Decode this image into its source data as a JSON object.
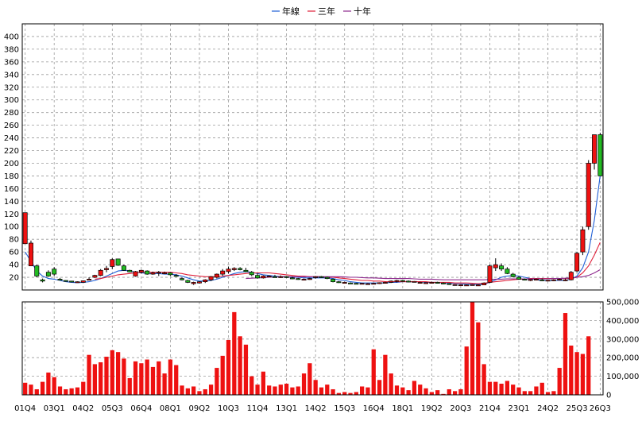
{
  "chart_data": {
    "type": "candlestick_with_volume",
    "legend": [
      {
        "name": "年線",
        "color": "#1f5fd6"
      },
      {
        "name": "三年",
        "color": "#e0203a"
      },
      {
        "name": "十年",
        "color": "#8e2a8e"
      }
    ],
    "price_axis": {
      "min": 0,
      "max": 400,
      "ticks": [
        20,
        40,
        60,
        80,
        100,
        120,
        140,
        160,
        180,
        200,
        220,
        240,
        260,
        280,
        300,
        320,
        340,
        360,
        380,
        400
      ]
    },
    "volume_axis": {
      "min": 0,
      "max": 500000,
      "ticks": [
        "0",
        "100,000",
        "200,000",
        "300,000",
        "400,000",
        "500,000"
      ],
      "tick_values": [
        0,
        100000,
        200000,
        300000,
        400000,
        500000
      ]
    },
    "x_labels": [
      "01Q4",
      "03Q1",
      "04Q2",
      "05Q3",
      "06Q4",
      "08Q1",
      "09Q2",
      "10Q3",
      "11Q4",
      "13Q1",
      "14Q2",
      "15Q3",
      "16Q4",
      "18Q1",
      "19Q2",
      "20Q3",
      "21Q4",
      "23Q1",
      "24Q2",
      "25Q3",
      "26Q3"
    ],
    "x_label_index": [
      0,
      5,
      10,
      15,
      20,
      25,
      30,
      35,
      40,
      45,
      50,
      55,
      60,
      65,
      70,
      75,
      80,
      85,
      90,
      95,
      99
    ],
    "ohlc": [
      [
        73,
        122,
        73,
        122
      ],
      [
        38,
        78,
        38,
        74
      ],
      [
        38,
        40,
        20,
        22
      ],
      [
        16,
        18,
        12,
        14
      ],
      [
        28,
        31,
        21,
        22
      ],
      [
        33,
        36,
        22,
        25
      ],
      [
        17,
        19,
        15,
        16
      ],
      [
        15,
        15.5,
        14,
        14.5
      ],
      [
        14,
        14.5,
        12,
        12.5
      ],
      [
        12.5,
        13.5,
        12,
        13
      ],
      [
        12,
        15,
        12,
        14.5
      ],
      [
        16,
        20,
        15,
        17
      ],
      [
        20,
        24,
        19,
        23
      ],
      [
        23,
        33,
        22,
        31
      ],
      [
        32,
        38,
        28,
        34
      ],
      [
        37,
        50,
        33,
        48
      ],
      [
        49,
        49,
        38,
        39
      ],
      [
        38,
        40,
        30,
        31
      ],
      [
        31,
        32,
        28,
        28.5
      ],
      [
        22,
        30,
        21,
        29
      ],
      [
        28,
        32,
        26,
        31
      ],
      [
        30,
        31,
        24,
        25
      ],
      [
        25,
        29,
        24,
        27
      ],
      [
        27,
        30,
        22,
        28
      ],
      [
        26,
        29,
        25,
        27
      ],
      [
        27,
        28,
        22,
        24
      ],
      [
        23,
        25,
        21,
        22
      ],
      [
        18,
        20,
        15,
        16
      ],
      [
        15,
        16,
        11,
        12
      ],
      [
        10,
        13,
        8,
        12
      ],
      [
        11,
        14,
        10,
        13
      ],
      [
        13,
        17,
        11,
        16
      ],
      [
        16,
        22,
        14,
        21
      ],
      [
        20,
        26,
        18,
        25
      ],
      [
        25,
        33,
        22,
        30
      ],
      [
        29,
        37,
        26,
        33
      ],
      [
        32,
        36,
        30,
        34
      ],
      [
        34,
        36,
        31,
        32
      ],
      [
        31,
        35,
        28,
        29
      ],
      [
        28,
        30,
        22,
        24
      ],
      [
        23,
        26,
        18,
        19
      ],
      [
        19,
        23,
        18,
        22
      ],
      [
        21,
        23,
        20,
        22
      ],
      [
        21,
        24,
        20,
        20.5
      ],
      [
        20,
        23,
        19,
        21
      ],
      [
        21,
        22,
        19,
        20
      ],
      [
        19,
        21,
        17,
        18
      ],
      [
        18,
        19,
        16,
        17
      ],
      [
        16,
        18,
        15,
        17
      ],
      [
        17,
        19,
        16,
        18
      ],
      [
        20,
        22,
        18,
        21
      ],
      [
        21,
        22,
        19,
        20
      ],
      [
        20,
        21,
        17,
        18
      ],
      [
        17,
        18,
        12,
        13
      ],
      [
        13,
        14,
        11,
        12
      ],
      [
        11,
        13,
        10,
        12
      ],
      [
        11,
        12,
        10,
        10.5
      ],
      [
        10.5,
        11,
        9.5,
        10
      ],
      [
        10,
        11,
        9.5,
        10.5
      ],
      [
        10,
        11,
        9,
        10
      ],
      [
        10,
        11,
        9.5,
        10.5
      ],
      [
        10,
        12,
        9.5,
        11.5
      ],
      [
        11,
        13,
        10,
        12
      ],
      [
        12,
        15,
        11,
        14
      ],
      [
        14,
        16,
        12,
        15
      ],
      [
        15,
        16,
        13,
        14
      ],
      [
        14,
        15,
        12,
        13
      ],
      [
        13,
        14,
        12,
        13.5
      ],
      [
        12,
        13,
        11,
        12
      ],
      [
        11,
        12,
        10,
        11.5
      ],
      [
        11,
        13,
        10,
        12
      ],
      [
        12,
        13,
        10,
        11
      ],
      [
        11,
        12,
        9,
        10
      ],
      [
        10,
        10.5,
        8,
        8.5
      ],
      [
        8,
        9,
        7,
        8.5
      ],
      [
        8,
        9,
        7.5,
        8.2
      ],
      [
        8,
        8.6,
        7.5,
        8
      ],
      [
        8,
        9,
        7.5,
        8.5
      ],
      [
        8,
        9,
        7.5,
        8
      ],
      [
        8,
        12,
        7.5,
        11
      ],
      [
        12,
        40,
        11,
        38
      ],
      [
        35,
        50,
        30,
        40
      ],
      [
        38,
        42,
        30,
        33
      ],
      [
        33,
        36,
        25,
        26
      ],
      [
        25,
        27,
        20,
        21
      ],
      [
        20,
        22,
        16,
        17
      ],
      [
        17,
        18,
        15,
        16
      ],
      [
        15,
        17,
        14,
        16.5
      ],
      [
        16,
        18,
        15,
        17
      ],
      [
        16,
        18,
        14,
        15
      ],
      [
        15,
        16,
        14,
        15.5
      ],
      [
        15,
        17,
        14,
        16
      ],
      [
        16,
        18,
        15,
        17
      ],
      [
        16,
        18,
        14,
        16
      ],
      [
        16,
        30,
        15,
        28
      ],
      [
        30,
        60,
        28,
        58
      ],
      [
        60,
        100,
        55,
        95
      ],
      [
        100,
        205,
        95,
        200
      ],
      [
        200,
        245,
        190,
        245
      ],
      [
        245,
        248,
        180,
        180
      ]
    ],
    "ma_year": [
      60,
      45,
      30,
      22,
      18,
      17,
      15,
      13,
      12,
      11.5,
      12,
      13,
      15,
      18,
      22,
      26,
      30,
      31,
      30,
      28,
      27,
      26,
      26,
      26,
      25,
      25,
      24,
      22,
      19,
      16,
      14,
      14,
      15,
      17,
      20,
      23,
      26,
      28,
      29,
      28,
      26,
      24,
      23,
      22,
      21,
      21,
      20,
      20,
      19,
      19,
      19,
      19,
      19,
      18,
      16,
      15,
      13,
      12,
      11,
      11,
      11,
      11,
      11,
      12,
      12,
      13,
      13,
      13,
      13,
      12,
      12,
      12,
      11,
      11,
      10,
      10,
      9,
      9,
      8.5,
      9,
      12,
      16,
      20,
      22,
      23,
      22,
      20,
      18,
      16,
      15,
      15,
      15,
      15,
      15,
      17,
      22,
      35,
      60,
      110,
      180
    ],
    "ma_3y": [
      null,
      null,
      null,
      null,
      null,
      null,
      null,
      null,
      null,
      null,
      null,
      null,
      17,
      18,
      20,
      22,
      24,
      25,
      26,
      27,
      28,
      28,
      28,
      28,
      28,
      28,
      27,
      26,
      24,
      23,
      22,
      21,
      21,
      21,
      22,
      23,
      24,
      25,
      26,
      27,
      27,
      27,
      27,
      26,
      25,
      24,
      23,
      22,
      22,
      21,
      21,
      21,
      20,
      20,
      19,
      18,
      17,
      16,
      15,
      15,
      14,
      14,
      13,
      13,
      13,
      13,
      13,
      13,
      13,
      13,
      12,
      12,
      12,
      12,
      11,
      11,
      11,
      10.5,
      10,
      10.5,
      12,
      13,
      14,
      15,
      16,
      17,
      17,
      18,
      18,
      18,
      18,
      18,
      18,
      18,
      18,
      20,
      27,
      38,
      55,
      75
    ],
    "ma_10y": [
      null,
      null,
      null,
      null,
      null,
      null,
      null,
      null,
      null,
      null,
      null,
      null,
      null,
      null,
      null,
      null,
      null,
      null,
      null,
      null,
      null,
      null,
      null,
      null,
      null,
      null,
      null,
      null,
      null,
      null,
      null,
      null,
      null,
      null,
      null,
      null,
      null,
      null,
      18,
      18.5,
      19,
      19.5,
      20,
      20.5,
      21,
      21,
      21,
      21,
      21,
      21,
      21,
      21,
      21,
      21,
      21,
      20.5,
      20,
      20,
      19.5,
      19,
      19,
      18.5,
      18,
      18,
      18,
      18,
      18,
      17.5,
      17,
      17,
      17,
      16.5,
      16,
      16,
      16,
      16,
      16,
      16,
      16,
      16,
      16.5,
      17,
      17,
      17.5,
      17.5,
      17.5,
      17.5,
      17.5,
      17.5,
      17.5,
      17.5,
      18,
      18,
      18.5,
      19,
      20,
      21,
      23,
      27,
      32
    ],
    "volume": [
      65000,
      55000,
      30000,
      70000,
      120000,
      95000,
      45000,
      30000,
      35000,
      40000,
      70000,
      215000,
      165000,
      175000,
      205000,
      240000,
      230000,
      195000,
      90000,
      180000,
      170000,
      190000,
      150000,
      180000,
      115000,
      190000,
      160000,
      50000,
      35000,
      45000,
      20000,
      30000,
      55000,
      145000,
      210000,
      295000,
      445000,
      315000,
      270000,
      100000,
      55000,
      125000,
      50000,
      45000,
      55000,
      60000,
      40000,
      45000,
      115000,
      170000,
      80000,
      40000,
      55000,
      30000,
      10000,
      15000,
      10000,
      15000,
      45000,
      40000,
      245000,
      80000,
      215000,
      115000,
      50000,
      40000,
      25000,
      75000,
      55000,
      35000,
      15000,
      25000,
      5000,
      30000,
      20000,
      30000,
      260000,
      500000,
      390000,
      165000,
      70000,
      70000,
      60000,
      75000,
      55000,
      40000,
      20000,
      20000,
      45000,
      65000,
      15000,
      20000,
      145000,
      440000,
      265000,
      230000,
      220000,
      315000,
      0,
      0
    ]
  }
}
